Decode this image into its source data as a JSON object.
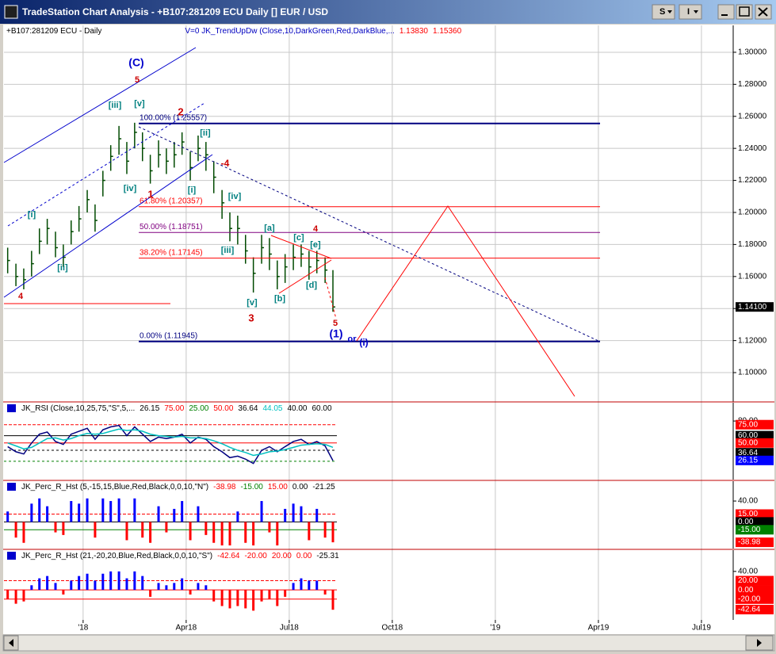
{
  "window": {
    "title": "TradeStation Chart Analysis - +B107:281209 ECU Daily [] EUR / USD",
    "buttons": [
      "S",
      "I"
    ]
  },
  "chart_data": [
    {
      "type": "ohlc",
      "header": [
        {
          "text": "+B107:281209 ECU - Daily",
          "color": "#000000"
        },
        {
          "text": "V=0  JK_TrendUpDw (Close,10,DarkGreen,Red,DarkBlue,...",
          "color": "#0000c0"
        },
        {
          "text": "1.13830",
          "color": "#ff0000"
        },
        {
          "text": "1.15360",
          "color": "#ff0000"
        }
      ],
      "color": "#004a00",
      "x": [
        2017.817,
        2017.837,
        2017.856,
        2017.875,
        2017.894,
        2017.913,
        2017.933,
        2017.952,
        2017.971,
        2017.99,
        2018.01,
        2018.029,
        2018.048,
        2018.067,
        2018.087,
        2018.106,
        2018.125,
        2018.144,
        2018.163,
        2018.183,
        2018.202,
        2018.221,
        2018.24,
        2018.26,
        2018.279,
        2018.298,
        2018.317,
        2018.337,
        2018.356,
        2018.375,
        2018.394,
        2018.413,
        2018.433,
        2018.452,
        2018.471,
        2018.49,
        2018.51,
        2018.529,
        2018.548,
        2018.567,
        2018.587,
        2018.606
      ],
      "high": [
        1.178,
        1.168,
        1.165,
        1.176,
        1.19,
        1.196,
        1.188,
        1.18,
        1.195,
        1.204,
        1.214,
        1.205,
        1.226,
        1.242,
        1.254,
        1.244,
        1.256,
        1.25,
        1.236,
        1.245,
        1.24,
        1.244,
        1.25,
        1.238,
        1.248,
        1.244,
        1.232,
        1.214,
        1.2,
        1.198,
        1.186,
        1.172,
        1.186,
        1.184,
        1.17,
        1.174,
        1.18,
        1.18,
        1.176,
        1.176,
        1.172,
        1.164
      ],
      "low": [
        1.162,
        1.154,
        1.152,
        1.16,
        1.174,
        1.18,
        1.172,
        1.166,
        1.18,
        1.188,
        1.2,
        1.188,
        1.21,
        1.226,
        1.236,
        1.224,
        1.24,
        1.232,
        1.218,
        1.228,
        1.224,
        1.228,
        1.236,
        1.22,
        1.232,
        1.226,
        1.212,
        1.196,
        1.182,
        1.18,
        1.168,
        1.15,
        1.168,
        1.164,
        1.152,
        1.156,
        1.164,
        1.166,
        1.158,
        1.162,
        1.156,
        1.138
      ],
      "close": [
        1.17,
        1.16,
        1.158,
        1.168,
        1.182,
        1.19,
        1.178,
        1.172,
        1.188,
        1.196,
        1.208,
        1.195,
        1.22,
        1.235,
        1.246,
        1.232,
        1.25,
        1.24,
        1.226,
        1.236,
        1.232,
        1.236,
        1.244,
        1.228,
        1.24,
        1.236,
        1.222,
        1.206,
        1.19,
        1.19,
        1.176,
        1.162,
        1.178,
        1.174,
        1.16,
        1.166,
        1.172,
        1.174,
        1.166,
        1.17,
        1.164,
        1.141
      ],
      "xlim": [
        2017.808,
        2019.577
      ],
      "xticks": [
        {
          "value": 2018,
          "label": "'18"
        },
        {
          "value": 2018.25,
          "label": "Apr18"
        },
        {
          "value": 2018.5,
          "label": "Jul18"
        },
        {
          "value": 2018.75,
          "label": "Oct18"
        },
        {
          "value": 2019,
          "label": "'19"
        },
        {
          "value": 2019.25,
          "label": "Apr19"
        },
        {
          "value": 2019.5,
          "label": "Jul19"
        }
      ],
      "ylim": [
        1.0817,
        1.3168
      ],
      "yticks": [
        {
          "value": 1.3,
          "label": "1.30000"
        },
        {
          "value": 1.28,
          "label": "1.28000"
        },
        {
          "value": 1.26,
          "label": "1.26000"
        },
        {
          "value": 1.24,
          "label": "1.24000"
        },
        {
          "value": 1.22,
          "label": "1.22000"
        },
        {
          "value": 1.2,
          "label": "1.20000"
        },
        {
          "value": 1.18,
          "label": "1.18000"
        },
        {
          "value": 1.16,
          "label": "1.16000"
        },
        {
          "value": 1.14,
          "label": "1.14000"
        },
        {
          "value": 1.12,
          "label": "1.12000"
        },
        {
          "value": 1.1,
          "label": "1.10000"
        }
      ],
      "grid": true,
      "last_price": {
        "value": 1.141,
        "label": "1.14100"
      },
      "fib_span": [
        2018.135,
        2019.254
      ],
      "fib_levels": [
        {
          "value": 1.25557,
          "label": "100.00% (1.25557)",
          "color": "#000080",
          "width": 2
        },
        {
          "value": 1.20357,
          "label": "61.80% (1.20357)",
          "color": "#ff0000",
          "width": 1
        },
        {
          "value": 1.18751,
          "label": "50.00% (1.18751)",
          "color": "#800080",
          "width": 1
        },
        {
          "value": 1.17145,
          "label": "38.20% (1.17145)",
          "color": "#ff0000",
          "width": 1
        },
        {
          "value": 1.11945,
          "label": "0.00% (1.11945)",
          "color": "#000080",
          "width": 2
        }
      ],
      "annotations": [
        "(C)",
        "5",
        "[iii]",
        "[v]",
        "2",
        "[ii]",
        "-4",
        "[iv]",
        "1",
        "[i]",
        "[iv]",
        "[i]",
        "[ii]",
        "4",
        "[iii]",
        "[v]",
        "3",
        "[a]",
        "[c]",
        "4",
        "[e]",
        "[b]",
        "[d]",
        "5",
        "(1)",
        "or",
        "(i)"
      ]
    },
    {
      "type": "line",
      "header": [
        {
          "text": "JK_RSI (Close,10,25,75,\"S\",5,...",
          "color": "#000000"
        },
        {
          "text": "26.15",
          "color": "#000000"
        },
        {
          "text": "75.00",
          "color": "#ff0000"
        },
        {
          "text": "25.00",
          "color": "#008000"
        },
        {
          "text": "50.00",
          "color": "#ff0000"
        },
        {
          "text": "36.64",
          "color": "#000000"
        },
        {
          "text": "44.05",
          "color": "#00c0c0"
        },
        {
          "text": "40.00",
          "color": "#000000"
        },
        {
          "text": "60.00",
          "color": "#000000"
        }
      ],
      "series": [
        {
          "color": "#000080",
          "values": [
            45,
            38,
            35,
            50,
            62,
            65,
            52,
            48,
            62,
            66,
            70,
            55,
            68,
            72,
            74,
            60,
            72,
            62,
            52,
            58,
            56,
            58,
            62,
            50,
            58,
            55,
            45,
            38,
            30,
            32,
            28,
            22,
            40,
            45,
            38,
            45,
            52,
            55,
            48,
            52,
            46,
            26
          ]
        },
        {
          "color": "#00c0c0",
          "values": [
            50,
            46,
            42,
            44,
            50,
            56,
            57,
            54,
            56,
            60,
            63,
            62,
            63,
            66,
            69,
            67,
            68,
            66,
            62,
            60,
            59,
            58,
            59,
            57,
            57,
            56,
            53,
            49,
            44,
            40,
            37,
            33,
            35,
            38,
            39,
            41,
            44,
            47,
            48,
            49,
            48,
            44
          ]
        }
      ],
      "ylim": [
        0,
        105
      ],
      "yticks": [
        {
          "value": 80,
          "label": "80.00"
        }
      ],
      "levels": [
        {
          "value": 75,
          "label": "75.00",
          "color": "#ff0000",
          "line": true
        },
        {
          "value": 60,
          "label": "60.00",
          "color": "#000000",
          "line": true
        },
        {
          "value": 50,
          "label": "50.00",
          "color": "#ff0000",
          "line": true
        },
        {
          "value": 36.64,
          "label": "36.64",
          "color": "#000000",
          "line": false
        },
        {
          "value": 26.15,
          "label": "26.15",
          "color": "#0000ff",
          "line": false
        }
      ],
      "guides": [
        {
          "value": 40,
          "color": "#000000"
        },
        {
          "value": 25,
          "color": "#008000"
        }
      ]
    },
    {
      "type": "histogram",
      "header": [
        {
          "text": "JK_Perc_R_Hst (5,-15,15,Blue,Red,Black,0,0,10,\"N\")",
          "color": "#000000"
        },
        {
          "text": "-38.98",
          "color": "#ff0000"
        },
        {
          "text": "-15.00",
          "color": "#008000"
        },
        {
          "text": "15.00",
          "color": "#ff0000"
        },
        {
          "text": "0.00",
          "color": "#000000"
        },
        {
          "text": "-21.25",
          "color": "#000000"
        }
      ],
      "color_pos": "#0000ff",
      "color_neg": "#ff0000",
      "values": [
        20,
        -30,
        -40,
        35,
        45,
        30,
        -20,
        -25,
        40,
        35,
        45,
        -30,
        45,
        40,
        45,
        -35,
        45,
        -30,
        -40,
        30,
        -20,
        25,
        40,
        -35,
        30,
        -25,
        -40,
        -45,
        -45,
        20,
        -40,
        -45,
        40,
        -20,
        -45,
        25,
        35,
        30,
        -35,
        25,
        -30,
        -39
      ],
      "ylim": [
        -51,
        78
      ],
      "yticks": [
        {
          "value": 40,
          "label": "40.00"
        }
      ],
      "levels": [
        {
          "value": 15,
          "label": "15.00",
          "color": "#ff0000",
          "line": true
        },
        {
          "value": 0,
          "label": "0.00",
          "color": "#000000",
          "line": true
        },
        {
          "value": -15,
          "label": "-15.00",
          "color": "#008000",
          "line": true
        },
        {
          "value": -38.98,
          "label": "-38.98",
          "color": "#ff0000",
          "line": false
        }
      ]
    },
    {
      "type": "histogram",
      "header": [
        {
          "text": "JK_Perc_R_Hst (21,-20,20,Blue,Red,Black,0,0,10,\"S\")",
          "color": "#000000"
        },
        {
          "text": "-42.64",
          "color": "#ff0000"
        },
        {
          "text": "-20.00",
          "color": "#ff0000"
        },
        {
          "text": "20.00",
          "color": "#ff0000"
        },
        {
          "text": "0.00",
          "color": "#ff0000"
        },
        {
          "text": "-25.31",
          "color": "#000000"
        }
      ],
      "color_pos": "#0000ff",
      "color_neg": "#ff0000",
      "values": [
        -20,
        -30,
        -25,
        10,
        25,
        30,
        15,
        -10,
        20,
        30,
        35,
        20,
        35,
        40,
        40,
        25,
        40,
        30,
        -15,
        15,
        10,
        15,
        25,
        -10,
        15,
        10,
        -25,
        -35,
        -40,
        -35,
        -40,
        -45,
        -25,
        -20,
        -35,
        -15,
        15,
        25,
        20,
        20,
        -10,
        -43
      ],
      "ylim": [
        -65,
        86
      ],
      "yticks": [
        {
          "value": 40,
          "label": "40.00"
        }
      ],
      "levels": [
        {
          "value": 20,
          "label": "20.00",
          "color": "#ff0000",
          "line": true
        },
        {
          "value": 0,
          "label": "0.00",
          "color": "#ff0000",
          "line": true
        },
        {
          "value": -20,
          "label": "-20.00",
          "color": "#ff0000",
          "line": true
        },
        {
          "value": -42.64,
          "label": "-42.64",
          "color": "#ff0000",
          "line": false
        }
      ]
    }
  ]
}
